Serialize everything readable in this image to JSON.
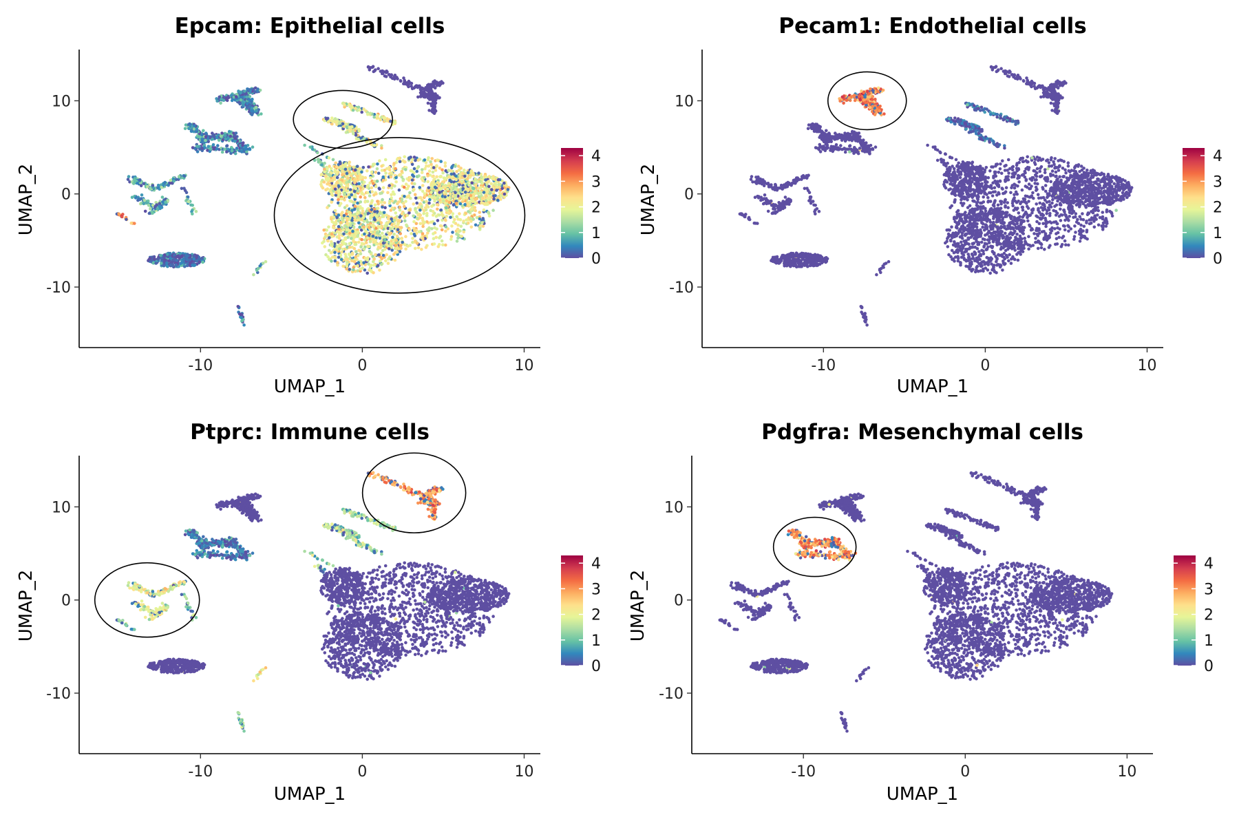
{
  "chart_data": [
    {
      "type": "scatter",
      "title": "Epcam: Epithelial cells",
      "xlabel": "UMAP_1",
      "ylabel": "UMAP_2",
      "xlim": [
        -17.5,
        11
      ],
      "ylim": [
        -16.5,
        15.5
      ],
      "xticks": [
        -10,
        0,
        10
      ],
      "yticks": [
        -10,
        0,
        10
      ],
      "xtick_labels": [
        "-10",
        "0",
        "10"
      ],
      "ytick_labels": [
        "-10",
        "0",
        "10"
      ],
      "colorbar": {
        "ticks": [
          0,
          1,
          2,
          3,
          4
        ],
        "labels": [
          "0",
          "1",
          "2",
          "3",
          "4"
        ]
      },
      "highlight_clusters": [
        "upper-middle",
        "main"
      ],
      "cluster_expression": {
        "main": 2.1,
        "upper-middle": 2.0,
        "top-right": 0.0,
        "left-upper": 0.4,
        "left-upper2": 0.5,
        "left-middle": 0.9,
        "left-tip": 3.2,
        "left-small": 1.0,
        "bottom-left": 0.15,
        "mid-small": 1.0,
        "bottom-small": 0.2,
        "mid-small2": 1.5
      }
    },
    {
      "type": "scatter",
      "title": "Pecam1: Endothelial cells",
      "xlabel": "UMAP_1",
      "ylabel": "UMAP_2",
      "xlim": [
        -17.5,
        11
      ],
      "ylim": [
        -16.5,
        15.5
      ],
      "xticks": [
        -10,
        0,
        10
      ],
      "yticks": [
        -10,
        0,
        10
      ],
      "xtick_labels": [
        "-10",
        "0",
        "10"
      ],
      "ytick_labels": [
        "-10",
        "0",
        "10"
      ],
      "colorbar": {
        "ticks": [
          0,
          1,
          2,
          3,
          4
        ],
        "labels": [
          "0",
          "1",
          "2",
          "3",
          "4"
        ]
      },
      "highlight_clusters": [
        "left-upper"
      ],
      "cluster_expression": {
        "main": 0.0,
        "upper-middle": 0.2,
        "top-right": 0.0,
        "left-upper": 3.2,
        "left-upper2": 0.0,
        "left-middle": 0.0,
        "left-tip": 0.0,
        "left-small": 0.0,
        "bottom-left": 0.0,
        "mid-small": 0.0,
        "bottom-small": 0.0,
        "mid-small2": 0.0
      }
    },
    {
      "type": "scatter",
      "title": "Ptprc: Immune cells",
      "xlabel": "UMAP_1",
      "ylabel": "UMAP_2",
      "xlim": [
        -17.5,
        11
      ],
      "ylim": [
        -16.5,
        15.5
      ],
      "xticks": [
        -10,
        0,
        10
      ],
      "yticks": [
        -10,
        0,
        10
      ],
      "xtick_labels": [
        "-10",
        "0",
        "10"
      ],
      "ytick_labels": [
        "-10",
        "0",
        "10"
      ],
      "colorbar": {
        "ticks": [
          0,
          1,
          2,
          3,
          4
        ],
        "labels": [
          "0",
          "1",
          "2",
          "3",
          "4"
        ]
      },
      "highlight_clusters": [
        "top-right",
        "left-middle"
      ],
      "cluster_expression": {
        "main": 0.0,
        "upper-middle": 1.5,
        "top-right": 3.0,
        "left-upper": 0.0,
        "left-upper2": 0.4,
        "left-middle": 2.0,
        "left-tip": 1.5,
        "left-small": 1.5,
        "bottom-left": 0.0,
        "mid-small": 1.2,
        "bottom-small": 1.3,
        "mid-small2": 2.2
      }
    },
    {
      "type": "scatter",
      "title": "Pdgfra: Mesenchymal cells",
      "xlabel": "UMAP_1",
      "ylabel": "UMAP_2",
      "xlim": [
        -17.5,
        11
      ],
      "ylim": [
        -16.5,
        15.5
      ],
      "xticks": [
        -10,
        0,
        10
      ],
      "yticks": [
        -10,
        0,
        10
      ],
      "xtick_labels": [
        "-10",
        "0",
        "10"
      ],
      "ytick_labels": [
        "-10",
        "0",
        "10"
      ],
      "colorbar": {
        "ticks": [
          0,
          1,
          2,
          3,
          4
        ],
        "labels": [
          "0",
          "1",
          "2",
          "3",
          "4"
        ]
      },
      "highlight_clusters": [
        "left-upper2"
      ],
      "cluster_expression": {
        "main": 0.0,
        "upper-middle": 0.0,
        "top-right": 0.0,
        "left-upper": 0.0,
        "left-upper2": 3.0,
        "left-middle": 0.0,
        "left-tip": 0.0,
        "left-small": 0.0,
        "bottom-left": 0.0,
        "mid-small": 0.0,
        "bottom-small": 0.0,
        "mid-small2": 0.0
      }
    }
  ],
  "colors": {
    "palette": [
      "#5E4FA2",
      "#3288BD",
      "#66C2A5",
      "#ABDDA4",
      "#E6F598",
      "#FEE08B",
      "#FDAE61",
      "#F46D43",
      "#D53E4F",
      "#9E0142"
    ],
    "point_base": "#5E4FA2",
    "axis": "#000000"
  }
}
